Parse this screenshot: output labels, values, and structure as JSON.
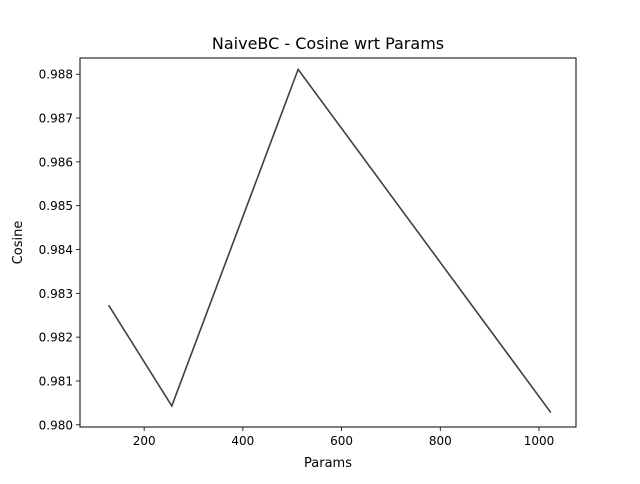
{
  "chart_data": {
    "type": "line",
    "title": "NaiveBC - Cosine wrt Params",
    "xlabel": "Params",
    "ylabel": "Cosine",
    "xlim": [
      70,
      1075
    ],
    "ylim": [
      0.97995,
      0.98837
    ],
    "xticks": [
      200,
      400,
      600,
      800,
      1000
    ],
    "yticks": [
      0.98,
      0.981,
      0.982,
      0.983,
      0.984,
      0.985,
      0.986,
      0.987,
      0.988
    ],
    "xtick_labels": [
      "200",
      "400",
      "600",
      "800",
      "1000"
    ],
    "ytick_labels": [
      "0.980",
      "0.981",
      "0.982",
      "0.983",
      "0.984",
      "0.985",
      "0.986",
      "0.987",
      "0.988"
    ],
    "grid": false,
    "legend": "none",
    "series": [
      {
        "color": "#404040",
        "x": [
          128,
          256,
          512,
          1024
        ],
        "y": [
          0.98273,
          0.98043,
          0.98811,
          0.98028
        ]
      }
    ]
  }
}
